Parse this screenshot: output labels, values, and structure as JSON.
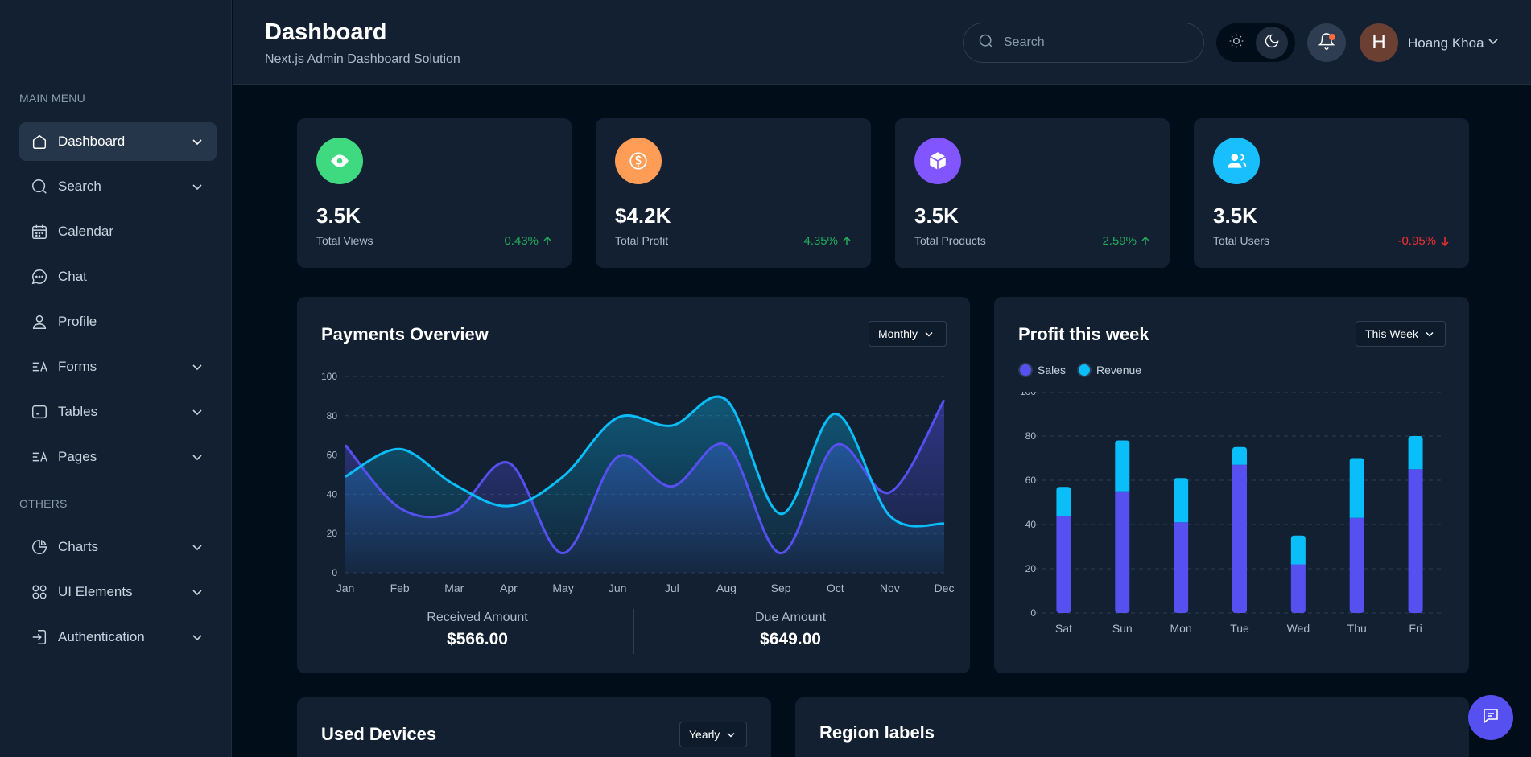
{
  "sidebar": {
    "sections": [
      {
        "heading": "MAIN MENU"
      },
      {
        "heading": "OTHERS"
      }
    ],
    "items": [
      {
        "label": "Dashboard",
        "icon": "home-icon",
        "active": true
      },
      {
        "label": "Search",
        "icon": "search-icon"
      },
      {
        "label": "Calendar",
        "icon": "calendar-icon"
      },
      {
        "label": "Chat",
        "icon": "chat-icon"
      },
      {
        "label": "Profile",
        "icon": "user-icon"
      },
      {
        "label": "Forms",
        "icon": "forms-icon"
      },
      {
        "label": "Tables",
        "icon": "table-icon"
      },
      {
        "label": "Pages",
        "icon": "pages-icon"
      },
      {
        "label": "Charts",
        "icon": "pie-chart-icon"
      },
      {
        "label": "UI Elements",
        "icon": "grid-icon"
      },
      {
        "label": "Authentication",
        "icon": "login-icon"
      }
    ]
  },
  "header": {
    "title": "Dashboard",
    "subtitle": "Next.js Admin Dashboard Solution",
    "search_placeholder": "Search",
    "user_initial": "H",
    "user_name": "Hoang Khoa"
  },
  "stats": [
    {
      "value": "3.5K",
      "label": "Total Views",
      "change": "0.43%",
      "trend": "up",
      "icon": "eye-icon",
      "color": "#3fd97f"
    },
    {
      "value": "$4.2K",
      "label": "Total Profit",
      "change": "4.35%",
      "trend": "up",
      "icon": "dollar-icon",
      "color": "#ff9c55"
    },
    {
      "value": "3.5K",
      "label": "Total Products",
      "change": "2.59%",
      "trend": "up",
      "icon": "box-icon",
      "color": "#8155ff"
    },
    {
      "value": "3.5K",
      "label": "Total Users",
      "change": "-0.95%",
      "trend": "down",
      "icon": "users-icon",
      "color": "#18bffc"
    }
  ],
  "colors": {
    "up": "#22ad5c",
    "down": "#f23030",
    "series_purple": "#5750f1",
    "series_cyan": "#0abef9"
  },
  "payments": {
    "title": "Payments Overview",
    "dropdown": "Monthly",
    "received_label": "Received Amount",
    "received_value": "$566.00",
    "due_label": "Due Amount",
    "due_value": "$649.00"
  },
  "profit": {
    "title": "Profit this week",
    "dropdown": "This Week"
  },
  "bottom": {
    "devices_title": "Used Devices",
    "devices_dropdown": "Yearly",
    "region_title": "Region labels"
  },
  "chart_data": [
    {
      "type": "area",
      "title": "Payments Overview",
      "categories": [
        "Jan",
        "Feb",
        "Mar",
        "Apr",
        "May",
        "Jun",
        "Jul",
        "Aug",
        "Sep",
        "Oct",
        "Nov",
        "Dec"
      ],
      "ylim": [
        0,
        100
      ],
      "yticks": [
        0,
        20,
        40,
        60,
        80,
        100
      ],
      "grid": true,
      "series": [
        {
          "name": "Received Amount",
          "values": [
            65,
            33,
            31,
            56,
            10,
            59,
            44,
            65,
            10,
            65,
            41,
            88
          ]
        },
        {
          "name": "Due Amount",
          "values": [
            49,
            63,
            45,
            34,
            49,
            79,
            75,
            88,
            30,
            81,
            29,
            25
          ]
        }
      ]
    },
    {
      "type": "bar",
      "title": "Profit this week",
      "stacked": true,
      "categories": [
        "Sat",
        "Sun",
        "Mon",
        "Tue",
        "Wed",
        "Thu",
        "Fri"
      ],
      "ylim": [
        0,
        100
      ],
      "yticks": [
        0,
        20,
        40,
        60,
        80,
        100
      ],
      "grid": true,
      "legend": "top-left",
      "series": [
        {
          "name": "Sales",
          "values": [
            44,
            55,
            41,
            67,
            22,
            43,
            65
          ]
        },
        {
          "name": "Revenue",
          "values": [
            13,
            23,
            20,
            8,
            13,
            27,
            15
          ]
        }
      ]
    }
  ]
}
